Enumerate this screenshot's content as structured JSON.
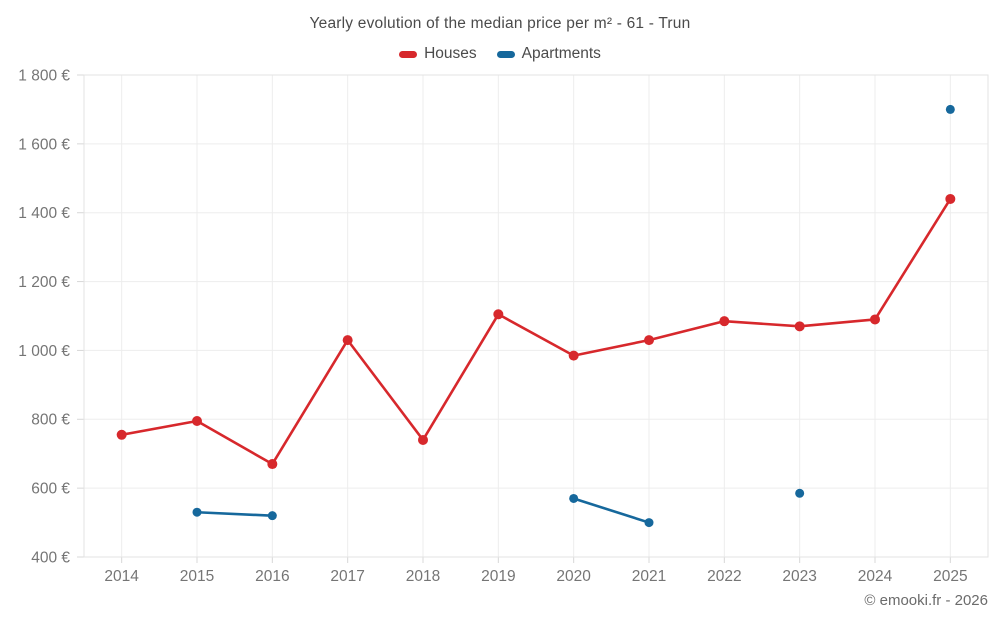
{
  "footer": {
    "text": "© emooki.fr - 2026"
  },
  "chart_data": {
    "type": "line",
    "title": "Yearly evolution of the median price per m² - 61 - Trun",
    "xlabel": "",
    "ylabel": "",
    "ylim": [
      400,
      1800
    ],
    "grid": true,
    "legend_position": "top-center",
    "currency_suffix": " €",
    "categories": [
      "2014",
      "2015",
      "2016",
      "2017",
      "2018",
      "2019",
      "2020",
      "2021",
      "2022",
      "2023",
      "2024",
      "2025"
    ],
    "y_ticks": [
      {
        "value": 400,
        "label": "400 €"
      },
      {
        "value": 600,
        "label": "600 €"
      },
      {
        "value": 800,
        "label": "800 €"
      },
      {
        "value": 1000,
        "label": "1 000 €"
      },
      {
        "value": 1200,
        "label": "1 200 €"
      },
      {
        "value": 1400,
        "label": "1 400 €"
      },
      {
        "value": 1600,
        "label": "1 600 €"
      },
      {
        "value": 1800,
        "label": "1 800 €"
      }
    ],
    "series": [
      {
        "name": "Houses",
        "color": "#d7282c",
        "marker_radius": 5,
        "values": [
          755,
          795,
          670,
          1030,
          740,
          1105,
          985,
          1030,
          1085,
          1070,
          1090,
          1440
        ]
      },
      {
        "name": "Apartments",
        "color": "#16689c",
        "marker_radius": 4.5,
        "values": [
          null,
          530,
          520,
          null,
          null,
          null,
          570,
          500,
          null,
          585,
          null,
          1700
        ]
      }
    ],
    "colors": {
      "background": "#ffffff",
      "gridline": "#ededed",
      "plot_border": "#e3e3e3",
      "tick": "#d8d8d8",
      "title_text": "#4b4b4b",
      "axis_text": "#757575",
      "footer_text": "#6b6b6b"
    }
  }
}
